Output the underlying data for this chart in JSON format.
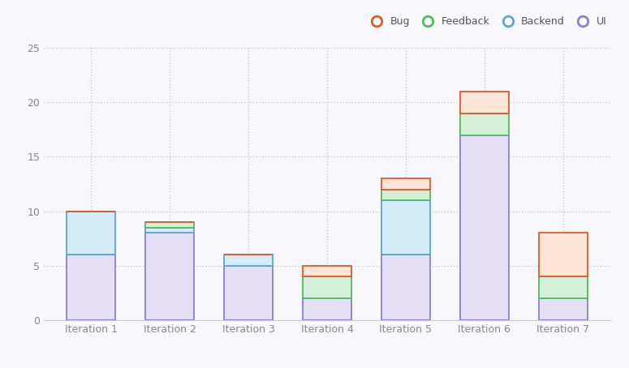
{
  "categories": [
    "Iteration 1",
    "Iteration 2",
    "Iteration 3",
    "Iteration 4",
    "Iteration 5",
    "Iteration 6",
    "Iteration 7"
  ],
  "series": {
    "UI": [
      6,
      8,
      5,
      2,
      6,
      17,
      2
    ],
    "Backend": [
      4,
      0.5,
      1,
      0,
      5,
      0,
      0
    ],
    "Feedback": [
      0,
      0.5,
      0,
      2,
      1,
      2,
      2
    ],
    "Bug": [
      0,
      0,
      0,
      1,
      1,
      2,
      4
    ]
  },
  "colors": {
    "UI": {
      "fill": "#e4dff5",
      "edge": "#8b7fd4"
    },
    "Backend": {
      "fill": "#d4edf9",
      "edge": "#5ba3e0"
    },
    "Feedback": {
      "fill": "#d4f0d8",
      "edge": "#4dbb5f"
    },
    "Bug": {
      "fill": "#fde5d8",
      "edge": "#e8562a"
    }
  },
  "legend_colors": {
    "Bug": "#e8562a",
    "Feedback": "#4dbb5f",
    "Backend": "#5ba3e0",
    "UI": "#8b7fd4"
  },
  "ylim": [
    0,
    25
  ],
  "yticks": [
    0,
    5,
    10,
    15,
    20,
    25
  ],
  "grid_color": "#c8c8d8",
  "background_color": "#f8f8fc",
  "plot_bg_color": "#f8f8fc",
  "bar_width": 0.62,
  "layer_order": [
    "UI",
    "Backend",
    "Feedback",
    "Bug"
  ],
  "legend_labels": [
    "Bug",
    "Feedback",
    "Backend",
    "UI"
  ],
  "figsize": [
    7.75,
    4.54
  ],
  "dpi": 100
}
